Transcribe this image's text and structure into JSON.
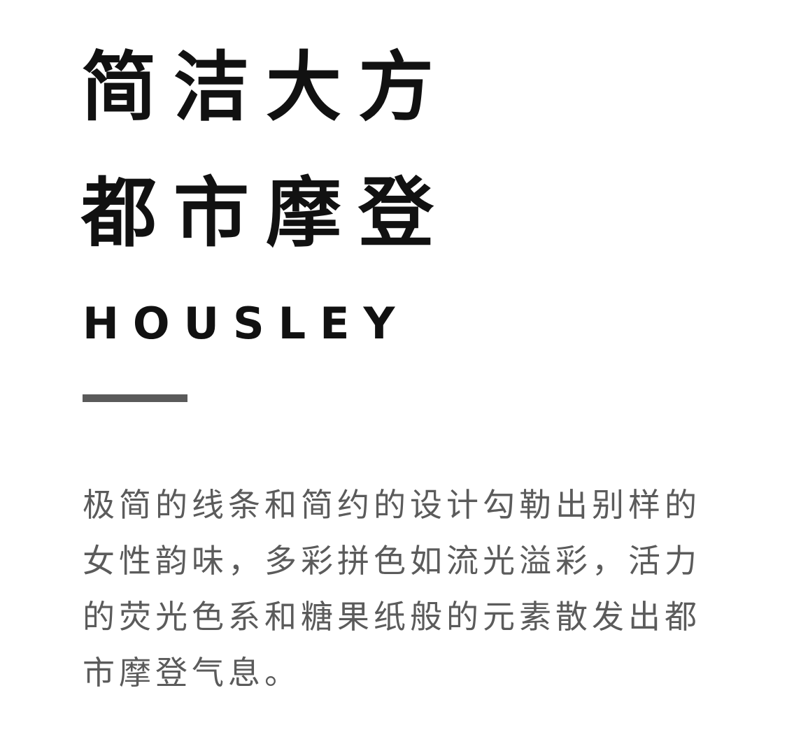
{
  "headline": {
    "line1": "简洁大方",
    "line2": "都市摩登"
  },
  "brand": "HOUSLEY",
  "colors": {
    "background": "#ffffff",
    "headline": "#111111",
    "divider": "#5a5a5a",
    "body_text": "#5b5b5b"
  },
  "description": {
    "lines": [
      "极简的线条和简约的设计勾勒出别样的",
      "女性韵味，多彩拼色如流光溢彩，活力",
      "的荧光色系和糖果纸般的元素散发出都",
      "市摩登气息。"
    ]
  }
}
